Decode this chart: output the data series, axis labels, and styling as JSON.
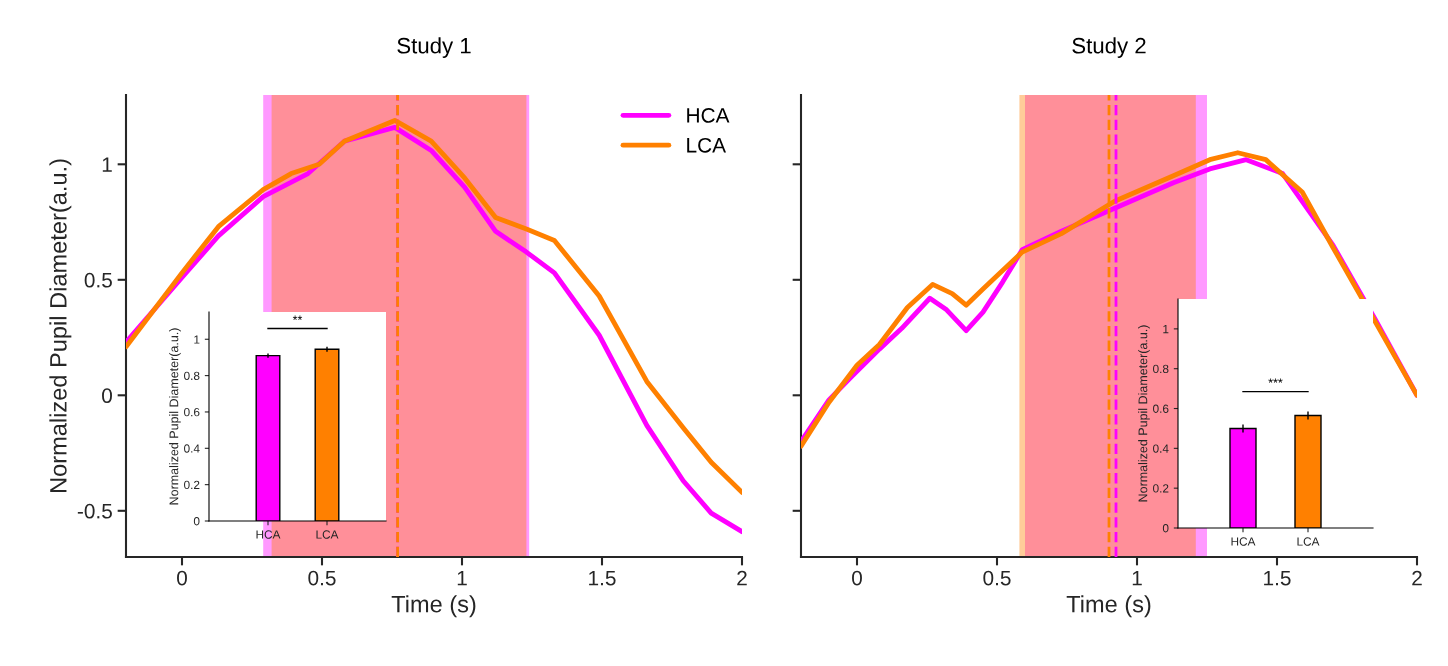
{
  "chart_data": [
    {
      "type": "line",
      "title": "Study 1",
      "xlabel": "Time (s)",
      "ylabel": "Normalized Pupil Diameter(a.u.)",
      "xlim": [
        -0.2,
        2
      ],
      "ylim": [
        -0.7,
        1.3
      ],
      "xticks": [
        0,
        0.5,
        1,
        1.5,
        2
      ],
      "yticks": [
        -0.5,
        0,
        0.5,
        1
      ],
      "legend": "top right",
      "line_style": "solid",
      "series": [
        {
          "name": "HCA",
          "color": "#ff00ff",
          "x": [
            -0.2,
            0,
            0.13,
            0.29,
            0.45,
            0.58,
            0.76,
            0.89,
            1.01,
            1.12,
            1.23,
            1.33,
            1.49,
            1.66,
            1.79,
            1.89,
            2
          ],
          "values": [
            0.23,
            0.51,
            0.69,
            0.86,
            0.96,
            1.1,
            1.16,
            1.06,
            0.9,
            0.71,
            0.62,
            0.53,
            0.26,
            -0.13,
            -0.37,
            -0.51,
            -0.59
          ]
        },
        {
          "name": "LCA",
          "color": "#ff8000",
          "x": [
            -0.2,
            0,
            0.13,
            0.29,
            0.39,
            0.49,
            0.58,
            0.76,
            0.89,
            1.01,
            1.12,
            1.23,
            1.33,
            1.49,
            1.66,
            1.79,
            1.89,
            2
          ],
          "values": [
            0.21,
            0.53,
            0.73,
            0.89,
            0.96,
            1.0,
            1.1,
            1.19,
            1.1,
            0.94,
            0.77,
            0.72,
            0.67,
            0.43,
            0.06,
            -0.14,
            -0.29,
            -0.42
          ]
        }
      ],
      "bands": [
        {
          "axis": "x",
          "from": 0.29,
          "to": 1.24,
          "color": "#ff00ff"
        },
        {
          "axis": "x",
          "from": 0.32,
          "to": 1.23,
          "color": "#ff8000"
        }
      ],
      "ref_lines": [
        {
          "axis": "x",
          "value": 0.77,
          "color": "#ff00ff",
          "line_style": "dashed"
        },
        {
          "axis": "x",
          "value": 0.77,
          "color": "#ff8000",
          "line_style": "dashed"
        }
      ]
    },
    {
      "type": "bar",
      "categories": [
        "HCA",
        "LCA"
      ],
      "values": [
        0.91,
        0.945
      ],
      "colors": [
        "#ff00ff",
        "#ff8000"
      ],
      "errors": [
        0.012,
        0.014
      ],
      "ylabel": "Normalized Pupil Diameter(a.u.)",
      "ylim": [
        0,
        1.15
      ],
      "yticks": [
        0,
        0.2,
        0.4,
        0.6,
        0.8,
        1
      ],
      "annotations": [
        "**"
      ]
    },
    {
      "type": "line",
      "title": "Study 2",
      "xlabel": "Time (s)",
      "xlim": [
        -0.2,
        2
      ],
      "ylim": [
        -0.7,
        1.3
      ],
      "xticks": [
        0,
        0.5,
        1,
        1.5,
        2
      ],
      "yticks": [
        -0.5,
        0,
        0.5,
        1
      ],
      "tick_labels": "x",
      "line_style": "solid",
      "series": [
        {
          "color": "#ff00ff",
          "x": [
            -0.2,
            -0.1,
            -0.02,
            0.08,
            0.16,
            0.26,
            0.32,
            0.39,
            0.45,
            0.52,
            0.59,
            0.73,
            0.92,
            1.13,
            1.26,
            1.39,
            1.52,
            1.7,
            1.85,
            2
          ],
          "values": [
            -0.2,
            -0.02,
            0.08,
            0.2,
            0.29,
            0.42,
            0.37,
            0.28,
            0.36,
            0.49,
            0.63,
            0.71,
            0.81,
            0.92,
            0.98,
            1.02,
            0.96,
            0.65,
            0.33,
            0.0
          ]
        },
        {
          "color": "#ff8000",
          "x": [
            -0.2,
            -0.1,
            0,
            0.08,
            0.18,
            0.27,
            0.34,
            0.39,
            0.45,
            0.52,
            0.59,
            0.73,
            0.92,
            1.13,
            1.26,
            1.36,
            1.46,
            1.59,
            1.7,
            1.85,
            2
          ],
          "values": [
            -0.22,
            -0.03,
            0.13,
            0.22,
            0.38,
            0.48,
            0.44,
            0.39,
            0.46,
            0.54,
            0.62,
            0.7,
            0.84,
            0.95,
            1.02,
            1.05,
            1.02,
            0.88,
            0.64,
            0.32,
            0.0
          ]
        }
      ],
      "bands": [
        {
          "axis": "x",
          "from": 0.6,
          "to": 1.25,
          "color": "#ff00ff"
        },
        {
          "axis": "x",
          "from": 0.58,
          "to": 1.21,
          "color": "#ff8000"
        }
      ],
      "ref_lines": [
        {
          "axis": "x",
          "value": 0.925,
          "color": "#ff00ff",
          "line_style": "dashed"
        },
        {
          "axis": "x",
          "value": 0.9,
          "color": "#ff8000",
          "line_style": "dashed"
        }
      ]
    },
    {
      "type": "bar",
      "categories": [
        "HCA",
        "LCA"
      ],
      "values": [
        0.5,
        0.565
      ],
      "colors": [
        "#ff00ff",
        "#ff8000"
      ],
      "errors": [
        0.02,
        0.02
      ],
      "ylabel": "Normalized Pupil Diameter(a.u.)",
      "ylim": [
        0,
        1.15
      ],
      "yticks": [
        0,
        0.2,
        0.4,
        0.6,
        0.8,
        1
      ],
      "annotations": [
        "***"
      ]
    }
  ]
}
